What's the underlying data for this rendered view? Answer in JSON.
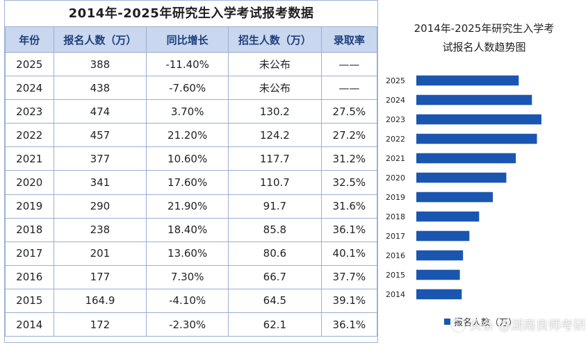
{
  "table": {
    "title": "2014年-2025年研究生入学考试报考数据",
    "headers": [
      "年份",
      "报名人数（万）",
      "同比增长",
      "招生人数（万）",
      "录取率"
    ],
    "rows": [
      [
        "2025",
        "388",
        "-11.40%",
        "未公布",
        "——"
      ],
      [
        "2024",
        "438",
        "-7.60%",
        "未公布",
        "——"
      ],
      [
        "2023",
        "474",
        "3.70%",
        "130.2",
        "27.5%"
      ],
      [
        "2022",
        "457",
        "21.20%",
        "124.2",
        "27.2%"
      ],
      [
        "2021",
        "377",
        "10.60%",
        "117.7",
        "31.2%"
      ],
      [
        "2020",
        "341",
        "17.60%",
        "110.7",
        "32.5%"
      ],
      [
        "2019",
        "290",
        "21.90%",
        "91.7",
        "31.6%"
      ],
      [
        "2018",
        "238",
        "18.40%",
        "85.8",
        "36.1%"
      ],
      [
        "2017",
        "201",
        "13.60%",
        "80.6",
        "40.1%"
      ],
      [
        "2016",
        "177",
        "7.30%",
        "66.7",
        "37.7%"
      ],
      [
        "2015",
        "164.9",
        "-4.10%",
        "64.5",
        "39.1%"
      ],
      [
        "2014",
        "172",
        "-2.30%",
        "62.1",
        "36.1%"
      ]
    ]
  },
  "chart_data": {
    "type": "bar",
    "orientation": "horizontal",
    "title_lines": [
      "2014年-2025年研究生入学考",
      "试报名人数趋势图"
    ],
    "categories": [
      "2025",
      "2024",
      "2023",
      "2022",
      "2021",
      "2020",
      "2019",
      "2018",
      "2017",
      "2016",
      "2015",
      "2014"
    ],
    "series": [
      {
        "name": "报名人数（万）",
        "values": [
          388,
          438,
          474,
          457,
          377,
          341,
          290,
          238,
          201,
          177,
          164.9,
          172
        ]
      }
    ],
    "xlim": [
      0,
      474
    ],
    "grid": false,
    "legend": "bottom",
    "bar_color": "#1a56b0"
  },
  "watermark": "头条 @湖南良师考研"
}
